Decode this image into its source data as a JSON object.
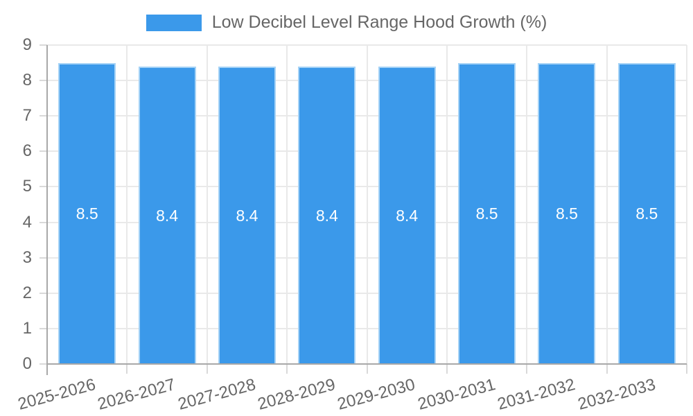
{
  "legend": {
    "title": "Low Decibel Level Range Hood Growth (%)"
  },
  "chart_data": {
    "type": "bar",
    "title": "Low Decibel Level Range Hood Growth (%)",
    "categories": [
      "2025-2026",
      "2026-2027",
      "2027-2028",
      "2028-2029",
      "2029-2030",
      "2030-2031",
      "2031-2032",
      "2032-2033"
    ],
    "values": [
      8.5,
      8.4,
      8.4,
      8.4,
      8.4,
      8.5,
      8.5,
      8.5
    ],
    "data_labels": [
      "8.5",
      "8.4",
      "8.4",
      "8.4",
      "8.4",
      "8.5",
      "8.5",
      "8.5"
    ],
    "xlabel": "",
    "ylabel": "",
    "ylim": [
      0,
      9
    ],
    "yticks": [
      0,
      1,
      2,
      3,
      4,
      5,
      6,
      7,
      8,
      9
    ],
    "grid": true,
    "legend_position": "top-center",
    "x_label_rotation_deg": -15,
    "colors": {
      "bar_fill": "#3b99ea",
      "bar_border": "#a6d3f6",
      "bar_label_text": "#ffffff",
      "grid_line": "#e9e9e9",
      "axis_line": "#a8a8a8",
      "tick_mark": "#d9d9d9",
      "axis_text": "#666666"
    }
  }
}
